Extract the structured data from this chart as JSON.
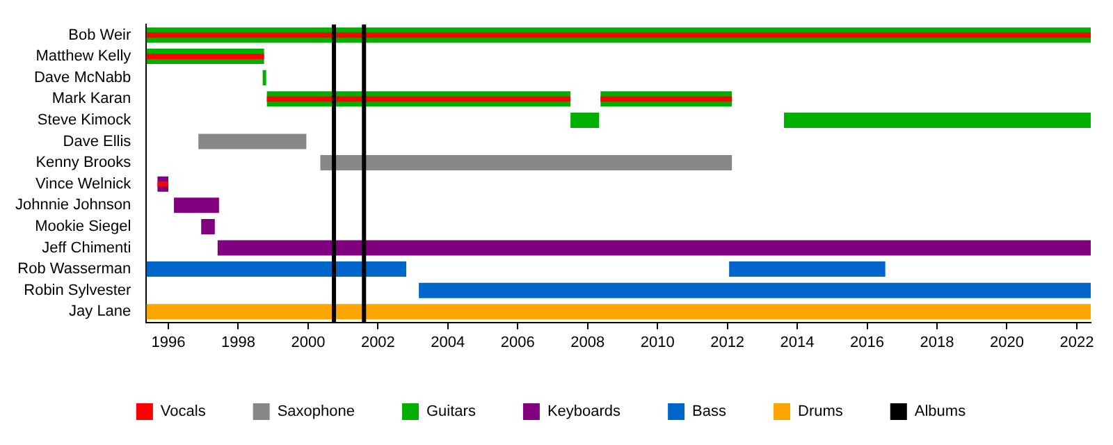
{
  "chart_data": {
    "type": "bar",
    "orientation": "horizontal",
    "legend": "bottom",
    "categories": [
      "Bob Weir",
      "Matthew Kelly",
      "Dave McNabb",
      "Mark Karan",
      "Steve Kimock",
      "Dave Ellis",
      "Kenny Brooks",
      "Vince Welnick",
      "Johnnie Johnson",
      "Mookie Siegel",
      "Jeff Chimenti",
      "Rob Wasserman",
      "Robin Sylvester",
      "Jay Lane"
    ],
    "xlim": [
      1995.37,
      2022.4
    ],
    "xticks": [
      1996,
      1998,
      2000,
      2002,
      2004,
      2006,
      2008,
      2010,
      2012,
      2014,
      2016,
      2018,
      2020,
      2022
    ],
    "series": [
      {
        "name": "Vocals",
        "color": "#ff0000",
        "base": [
          1995.37,
          1995.37,
          null,
          1998.82,
          null,
          null,
          null,
          1995.69,
          null,
          null,
          null,
          null,
          null,
          null
        ],
        "values": [
          27.03,
          3.37,
          null,
          8.69,
          null,
          null,
          null,
          0.31,
          null,
          null,
          null,
          null,
          null,
          null
        ]
      },
      {
        "color": "#ff0000",
        "base": [
          null,
          null,
          null,
          2008.37,
          null,
          null,
          null,
          null,
          null,
          null,
          null,
          null,
          null,
          null
        ],
        "values": [
          null,
          null,
          null,
          3.76,
          null,
          null,
          null,
          null,
          null,
          null,
          null,
          null,
          null,
          null
        ]
      },
      {
        "name": "Saxophone",
        "color": "#888888",
        "base": [
          null,
          null,
          null,
          null,
          null,
          1996.86,
          2000.35,
          null,
          null,
          null,
          null,
          null,
          null,
          null
        ],
        "values": [
          null,
          null,
          null,
          null,
          null,
          3.09,
          11.78,
          null,
          null,
          null,
          null,
          null,
          null,
          null
        ]
      },
      {
        "name": "Guitars",
        "color": "#00b000",
        "base": [
          1995.37,
          1995.37,
          1998.7,
          1998.82,
          2007.51,
          null,
          null,
          null,
          null,
          null,
          null,
          null,
          null,
          null
        ],
        "values": [
          27.03,
          3.37,
          0.1,
          8.69,
          0.82,
          null,
          null,
          null,
          null,
          null,
          null,
          null,
          null,
          null
        ]
      },
      {
        "color": "#00b000",
        "base": [
          null,
          null,
          null,
          2008.37,
          2013.62,
          null,
          null,
          null,
          null,
          null,
          null,
          null,
          null,
          null
        ],
        "values": [
          null,
          null,
          null,
          3.76,
          8.78,
          null,
          null,
          null,
          null,
          null,
          null,
          null,
          null,
          null
        ]
      },
      {
        "name": "Keyboards",
        "color": "#800080",
        "base": [
          null,
          null,
          null,
          null,
          null,
          null,
          null,
          1995.69,
          1996.16,
          1996.94,
          1997.41,
          null,
          null,
          null
        ],
        "values": [
          null,
          null,
          null,
          null,
          null,
          null,
          null,
          0.31,
          1.29,
          0.39,
          24.99,
          null,
          null,
          null
        ]
      },
      {
        "name": "Bass",
        "color": "#0066cc",
        "base": [
          null,
          null,
          null,
          null,
          null,
          null,
          null,
          null,
          null,
          null,
          null,
          1995.37,
          2003.17,
          null
        ],
        "values": [
          null,
          null,
          null,
          null,
          null,
          null,
          null,
          null,
          null,
          null,
          null,
          7.44,
          19.23,
          null
        ]
      },
      {
        "color": "#0066cc",
        "base": [
          null,
          null,
          null,
          null,
          null,
          null,
          null,
          null,
          null,
          null,
          null,
          2012.05,
          null,
          null
        ],
        "values": [
          null,
          null,
          null,
          null,
          null,
          null,
          null,
          null,
          null,
          null,
          null,
          4.47,
          null,
          null
        ]
      },
      {
        "name": "Drums",
        "color": "#ffa500",
        "base": [
          null,
          null,
          null,
          null,
          null,
          null,
          null,
          null,
          null,
          null,
          null,
          null,
          null,
          1995.37
        ],
        "values": [
          null,
          null,
          null,
          null,
          null,
          null,
          null,
          null,
          null,
          null,
          null,
          null,
          null,
          27.03
        ]
      }
    ],
    "ref_lines": [
      {
        "axis": "x",
        "value": 2000.74,
        "label": "Albums",
        "color": "#000000"
      },
      {
        "axis": "x",
        "value": 2001.6,
        "label": null,
        "color": "#000000"
      }
    ]
  }
}
